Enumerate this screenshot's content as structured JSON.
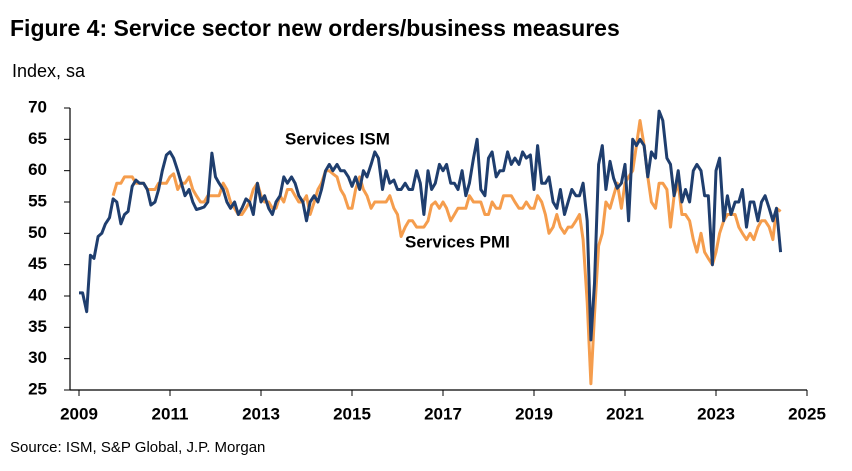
{
  "chart_data": {
    "type": "line",
    "title": "Figure 4: Service sector new orders/business measures",
    "subtitle": "Index, sa",
    "source": "Source: ISM, S&P Global, J.P. Morgan",
    "xlim": [
      2009,
      2025
    ],
    "xticks": [
      2009,
      2011,
      2013,
      2015,
      2017,
      2019,
      2021,
      2023,
      2025
    ],
    "ylim": [
      25,
      70
    ],
    "yticks": [
      25,
      30,
      35,
      40,
      45,
      50,
      55,
      60,
      65,
      70
    ],
    "x": [
      2009.0,
      2009.08,
      2009.17,
      2009.25,
      2009.33,
      2009.42,
      2009.5,
      2009.58,
      2009.67,
      2009.75,
      2009.83,
      2009.92,
      2010.0,
      2010.08,
      2010.17,
      2010.25,
      2010.33,
      2010.42,
      2010.5,
      2010.58,
      2010.67,
      2010.75,
      2010.83,
      2010.92,
      2011.0,
      2011.08,
      2011.17,
      2011.25,
      2011.33,
      2011.42,
      2011.5,
      2011.58,
      2011.67,
      2011.75,
      2011.83,
      2011.92,
      2012.0,
      2012.08,
      2012.17,
      2012.25,
      2012.33,
      2012.42,
      2012.5,
      2012.58,
      2012.67,
      2012.75,
      2012.83,
      2012.92,
      2013.0,
      2013.08,
      2013.17,
      2013.25,
      2013.33,
      2013.42,
      2013.5,
      2013.58,
      2013.67,
      2013.75,
      2013.83,
      2013.92,
      2014.0,
      2014.08,
      2014.17,
      2014.25,
      2014.33,
      2014.42,
      2014.5,
      2014.58,
      2014.67,
      2014.75,
      2014.83,
      2014.92,
      2015.0,
      2015.08,
      2015.17,
      2015.25,
      2015.33,
      2015.42,
      2015.5,
      2015.58,
      2015.67,
      2015.75,
      2015.83,
      2015.92,
      2016.0,
      2016.08,
      2016.17,
      2016.25,
      2016.33,
      2016.42,
      2016.5,
      2016.58,
      2016.67,
      2016.75,
      2016.83,
      2016.92,
      2017.0,
      2017.08,
      2017.17,
      2017.25,
      2017.33,
      2017.42,
      2017.5,
      2017.58,
      2017.67,
      2017.75,
      2017.83,
      2017.92,
      2018.0,
      2018.08,
      2018.17,
      2018.25,
      2018.33,
      2018.42,
      2018.5,
      2018.58,
      2018.67,
      2018.75,
      2018.83,
      2018.92,
      2019.0,
      2019.08,
      2019.17,
      2019.25,
      2019.33,
      2019.42,
      2019.5,
      2019.58,
      2019.67,
      2019.75,
      2019.83,
      2019.92,
      2020.0,
      2020.08,
      2020.17,
      2020.25,
      2020.33,
      2020.42,
      2020.5,
      2020.58,
      2020.67,
      2020.75,
      2020.83,
      2020.92,
      2021.0,
      2021.08,
      2021.17,
      2021.25,
      2021.33,
      2021.42,
      2021.5,
      2021.58,
      2021.67,
      2021.75,
      2021.83,
      2021.92,
      2022.0,
      2022.08,
      2022.17,
      2022.25,
      2022.33,
      2022.42,
      2022.5,
      2022.58,
      2022.67,
      2022.75,
      2022.83,
      2022.92,
      2023.0,
      2023.08,
      2023.17,
      2023.25,
      2023.33,
      2023.42,
      2023.5,
      2023.58,
      2023.67,
      2023.75,
      2023.83,
      2023.92,
      2024.0,
      2024.08,
      2024.17,
      2024.25,
      2024.33,
      2024.42
    ],
    "series": [
      {
        "name": "Services PMI",
        "color": "#f59d4d",
        "values": [
          null,
          null,
          null,
          null,
          null,
          null,
          null,
          null,
          null,
          56,
          58,
          58,
          59,
          59,
          59,
          58,
          58,
          58,
          57,
          57,
          57,
          58,
          58,
          58,
          59,
          59.5,
          57,
          58,
          58,
          59,
          57,
          56,
          55,
          55,
          56,
          56,
          56,
          56,
          58,
          57,
          55,
          54,
          53,
          53,
          54,
          55,
          57,
          58,
          56,
          55,
          55,
          54,
          54,
          56,
          55,
          57,
          57,
          56,
          55,
          55,
          56,
          53,
          55,
          57,
          58,
          60,
          60,
          59.5,
          59,
          57,
          56,
          54,
          54,
          57,
          59,
          57,
          56,
          54,
          55,
          55,
          55,
          55,
          56,
          54,
          53,
          49.5,
          51,
          52,
          52,
          51,
          51,
          51,
          52,
          54.5,
          55,
          54,
          55,
          54,
          52,
          53,
          54,
          54,
          54,
          56,
          55,
          55,
          55,
          53,
          53,
          55,
          54,
          54,
          56,
          56,
          56,
          55,
          54,
          54,
          55,
          54,
          54,
          56,
          55,
          53,
          50,
          51,
          53,
          51,
          50,
          51,
          51,
          52,
          53,
          49,
          39,
          26,
          37,
          48,
          50,
          55,
          54,
          56,
          58,
          54,
          58,
          59,
          60,
          64,
          68,
          64,
          59,
          55,
          54,
          58,
          58,
          57,
          51,
          56,
          58,
          53,
          53,
          52,
          49,
          47,
          50,
          47,
          46,
          45,
          47,
          50,
          52,
          53,
          53,
          53,
          51,
          50,
          49,
          50,
          49,
          51,
          52,
          52,
          51,
          49,
          54,
          53.5
        ]
      },
      {
        "name": "Services ISM",
        "color": "#1f3e6e",
        "values": [
          40.5,
          40.5,
          37.5,
          46.5,
          46,
          49.5,
          50,
          51.5,
          52.5,
          55.5,
          55,
          51.5,
          53,
          53.5,
          57.5,
          58.5,
          58,
          58,
          57,
          54.5,
          55,
          57,
          60,
          62.5,
          63,
          62,
          60,
          58,
          56,
          57,
          55,
          53.8,
          54,
          54.2,
          55,
          62.8,
          59,
          58,
          57,
          55,
          54,
          55,
          53,
          54,
          55.5,
          55,
          53,
          58,
          55,
          56,
          54,
          53,
          55,
          56,
          59,
          58,
          59,
          58,
          56,
          55,
          52,
          55,
          56,
          55,
          57,
          60,
          61,
          60,
          61,
          60,
          60,
          59,
          57.5,
          59,
          57,
          60,
          59,
          61,
          63,
          62,
          57,
          60,
          58,
          58.5,
          57,
          57,
          58,
          57,
          57,
          60,
          58,
          53,
          60,
          57,
          58,
          61,
          60,
          61,
          58,
          58,
          57,
          60,
          56,
          58,
          62,
          65,
          57,
          56,
          62,
          63,
          59,
          60,
          60,
          63,
          61,
          62,
          61,
          63,
          62,
          62.5,
          57,
          64,
          58,
          58,
          59,
          55,
          54,
          57,
          53,
          55,
          57,
          56,
          56,
          58,
          52,
          33,
          42,
          61,
          64,
          57,
          61.5,
          58.8,
          57.2,
          58,
          61,
          52,
          65,
          64,
          65,
          64,
          59,
          63,
          62,
          69.5,
          68,
          62,
          61,
          56,
          60,
          55,
          57,
          55,
          60,
          61,
          60,
          56,
          56,
          45,
          60,
          62,
          52,
          56,
          53,
          55,
          55,
          57,
          51,
          55,
          55,
          52,
          55,
          56,
          54,
          52,
          54,
          47
        ]
      }
    ]
  }
}
